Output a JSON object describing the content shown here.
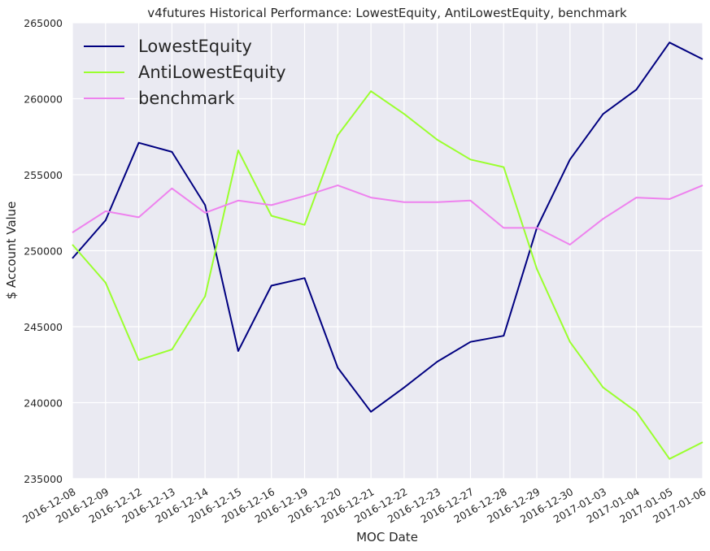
{
  "chart_data": {
    "type": "line",
    "title": "v4futures Historical Performance: LowestEquity, AntiLowestEquity, benchmark",
    "xlabel": "MOC Date",
    "ylabel": "$ Account Value",
    "ylim": [
      235000,
      265000
    ],
    "yticks": [
      235000,
      240000,
      245000,
      250000,
      255000,
      260000,
      265000
    ],
    "grid": true,
    "legend_position": "top-left",
    "categories": [
      "2016-12-08",
      "2016-12-09",
      "2016-12-12",
      "2016-12-13",
      "2016-12-14",
      "2016-12-15",
      "2016-12-16",
      "2016-12-19",
      "2016-12-20",
      "2016-12-21",
      "2016-12-22",
      "2016-12-23",
      "2016-12-27",
      "2016-12-28",
      "2016-12-29",
      "2016-12-30",
      "2017-01-03",
      "2017-01-04",
      "2017-01-05",
      "2017-01-06"
    ],
    "series": [
      {
        "name": "LowestEquity",
        "color": "#000080",
        "values": [
          249500,
          252000,
          257100,
          256500,
          253000,
          243400,
          247700,
          248200,
          242300,
          239400,
          241000,
          242700,
          244000,
          244400,
          251500,
          256000,
          259000,
          260600,
          263700,
          262600
        ]
      },
      {
        "name": "AntiLowestEquity",
        "color": "#9aff2e",
        "values": [
          250400,
          247900,
          242800,
          243500,
          247000,
          256600,
          252300,
          251700,
          257600,
          260500,
          259000,
          257300,
          256000,
          255500,
          248800,
          244000,
          241000,
          239400,
          236300,
          237400
        ]
      },
      {
        "name": "benchmark",
        "color": "#ee82ee",
        "values": [
          251200,
          252600,
          252200,
          254100,
          252500,
          253300,
          253000,
          253600,
          254300,
          253500,
          253200,
          253200,
          253300,
          251500,
          251500,
          250400,
          252100,
          253500,
          253400,
          254300
        ]
      }
    ]
  }
}
